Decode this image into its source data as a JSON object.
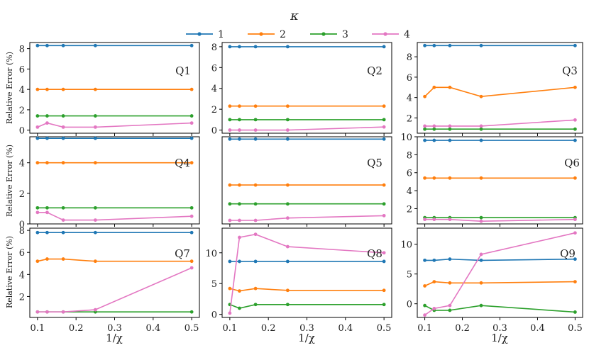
{
  "legend": {
    "title": "κ",
    "entries": [
      {
        "label": "1",
        "color": "#1f77b4"
      },
      {
        "label": "2",
        "color": "#ff7f0e"
      },
      {
        "label": "3",
        "color": "#2ca02c"
      },
      {
        "label": "4",
        "color": "#e377c2"
      }
    ]
  },
  "ylabel": "Relative Error (%)",
  "xlabel": "1/χ",
  "chart_data": [
    {
      "type": "line",
      "title": "Q1",
      "x": [
        0.1,
        0.125,
        0.1667,
        0.25,
        0.5
      ],
      "ylim": [
        -0.3,
        8.6
      ],
      "yticks": [
        0,
        2,
        4,
        6,
        8
      ],
      "series": [
        {
          "name": "1",
          "values": [
            8.3,
            8.3,
            8.3,
            8.3,
            8.3
          ]
        },
        {
          "name": "2",
          "values": [
            4.0,
            4.0,
            4.0,
            4.0,
            4.0
          ]
        },
        {
          "name": "3",
          "values": [
            1.4,
            1.4,
            1.4,
            1.4,
            1.4
          ]
        },
        {
          "name": "4",
          "values": [
            0.3,
            0.7,
            0.3,
            0.3,
            0.7
          ]
        }
      ]
    },
    {
      "type": "line",
      "title": "Q2",
      "x": [
        0.1,
        0.125,
        0.1667,
        0.25,
        0.5
      ],
      "ylim": [
        -0.3,
        8.4
      ],
      "yticks": [
        0,
        2,
        4,
        6,
        8
      ],
      "series": [
        {
          "name": "1",
          "values": [
            8.0,
            8.0,
            8.0,
            8.0,
            8.0
          ]
        },
        {
          "name": "2",
          "values": [
            2.3,
            2.3,
            2.3,
            2.3,
            2.3
          ]
        },
        {
          "name": "3",
          "values": [
            1.0,
            1.0,
            1.0,
            1.0,
            1.0
          ]
        },
        {
          "name": "4",
          "values": [
            0.0,
            0.0,
            0.0,
            0.0,
            0.3
          ]
        }
      ]
    },
    {
      "type": "line",
      "title": "Q3",
      "x": [
        0.1,
        0.125,
        0.1667,
        0.25,
        0.5
      ],
      "ylim": [
        0.5,
        9.4
      ],
      "yticks": [
        2,
        4,
        6,
        8
      ],
      "series": [
        {
          "name": "1",
          "values": [
            9.1,
            9.1,
            9.1,
            9.1,
            9.1
          ]
        },
        {
          "name": "2",
          "values": [
            4.1,
            5.0,
            5.0,
            4.1,
            5.0
          ]
        },
        {
          "name": "3",
          "values": [
            0.9,
            0.9,
            0.9,
            0.9,
            0.9
          ]
        },
        {
          "name": "4",
          "values": [
            1.2,
            1.2,
            1.2,
            1.2,
            1.8
          ]
        }
      ]
    },
    {
      "type": "line",
      "title": "Q4",
      "x": [
        0.1,
        0.125,
        0.1667,
        0.25,
        0.5
      ],
      "ylim": [
        0,
        5.7
      ],
      "yticks": [
        0,
        2,
        4
      ],
      "series": [
        {
          "name": "1",
          "values": [
            5.6,
            5.6,
            5.6,
            5.6,
            5.6
          ]
        },
        {
          "name": "2",
          "values": [
            4.0,
            4.0,
            4.0,
            4.0,
            4.0
          ]
        },
        {
          "name": "3",
          "values": [
            1.05,
            1.05,
            1.05,
            1.05,
            1.05
          ]
        },
        {
          "name": "4",
          "values": [
            0.75,
            0.75,
            0.25,
            0.25,
            0.5
          ]
        }
      ]
    },
    {
      "type": "line",
      "title": "Q5",
      "x": [
        0.1,
        0.125,
        0.1667,
        0.25,
        0.5
      ],
      "ylim": [
        0,
        7.4
      ],
      "yticks": [],
      "series": [
        {
          "name": "1",
          "values": [
            7.2,
            7.2,
            7.2,
            7.2,
            7.2
          ]
        },
        {
          "name": "2",
          "values": [
            3.3,
            3.3,
            3.3,
            3.3,
            3.3
          ]
        },
        {
          "name": "3",
          "values": [
            1.7,
            1.7,
            1.7,
            1.7,
            1.7
          ]
        },
        {
          "name": "4",
          "values": [
            0.3,
            0.3,
            0.3,
            0.5,
            0.7
          ]
        }
      ]
    },
    {
      "type": "line",
      "title": "Q6",
      "x": [
        0.1,
        0.125,
        0.1667,
        0.25,
        0.5
      ],
      "ylim": [
        0.3,
        10.0
      ],
      "yticks": [
        2,
        4,
        6,
        8,
        10
      ],
      "series": [
        {
          "name": "1",
          "values": [
            9.6,
            9.6,
            9.6,
            9.6,
            9.6
          ]
        },
        {
          "name": "2",
          "values": [
            5.4,
            5.4,
            5.4,
            5.4,
            5.4
          ]
        },
        {
          "name": "3",
          "values": [
            1.0,
            1.0,
            1.0,
            1.0,
            1.0
          ]
        },
        {
          "name": "4",
          "values": [
            0.8,
            0.8,
            0.8,
            0.6,
            0.8
          ]
        }
      ]
    },
    {
      "type": "line",
      "title": "Q7",
      "x": [
        0.1,
        0.125,
        0.1667,
        0.25,
        0.5
      ],
      "ylim": [
        0.1,
        8.2
      ],
      "yticks": [
        2,
        4,
        6,
        8
      ],
      "series": [
        {
          "name": "1",
          "values": [
            7.8,
            7.8,
            7.8,
            7.8,
            7.8
          ]
        },
        {
          "name": "2",
          "values": [
            5.2,
            5.4,
            5.4,
            5.2,
            5.2
          ]
        },
        {
          "name": "3",
          "values": [
            0.6,
            0.6,
            0.6,
            0.6,
            0.6
          ]
        },
        {
          "name": "4",
          "values": [
            0.6,
            0.6,
            0.6,
            0.8,
            4.6
          ]
        }
      ]
    },
    {
      "type": "line",
      "title": "Q8",
      "x": [
        0.1,
        0.125,
        0.1667,
        0.25,
        0.5
      ],
      "ylim": [
        -0.5,
        14.0
      ],
      "yticks": [
        0,
        5,
        10
      ],
      "series": [
        {
          "name": "1",
          "values": [
            8.6,
            8.6,
            8.6,
            8.6,
            8.6
          ]
        },
        {
          "name": "2",
          "values": [
            4.2,
            3.8,
            4.2,
            3.9,
            3.9
          ]
        },
        {
          "name": "3",
          "values": [
            1.6,
            1.0,
            1.6,
            1.6,
            1.6
          ]
        },
        {
          "name": "4",
          "values": [
            0.2,
            12.5,
            13.0,
            11.0,
            10.0
          ]
        }
      ]
    },
    {
      "type": "line",
      "title": "Q9",
      "x": [
        0.1,
        0.125,
        0.1667,
        0.25,
        0.5
      ],
      "ylim": [
        -2.3,
        12.7
      ],
      "yticks": [
        0,
        5,
        10
      ],
      "series": [
        {
          "name": "1",
          "values": [
            7.3,
            7.3,
            7.5,
            7.3,
            7.5
          ]
        },
        {
          "name": "2",
          "values": [
            3.0,
            3.7,
            3.5,
            3.5,
            3.7
          ]
        },
        {
          "name": "3",
          "values": [
            -0.3,
            -1.1,
            -1.1,
            -0.3,
            -1.4
          ]
        },
        {
          "name": "4",
          "values": [
            -1.9,
            -0.8,
            -0.3,
            8.3,
            11.9
          ]
        }
      ]
    }
  ],
  "xticks": [
    0.1,
    0.2,
    0.3,
    0.4,
    0.5
  ],
  "xtick_labels": [
    "0.1",
    "0.2",
    "0.3",
    "0.4",
    "0.5"
  ]
}
